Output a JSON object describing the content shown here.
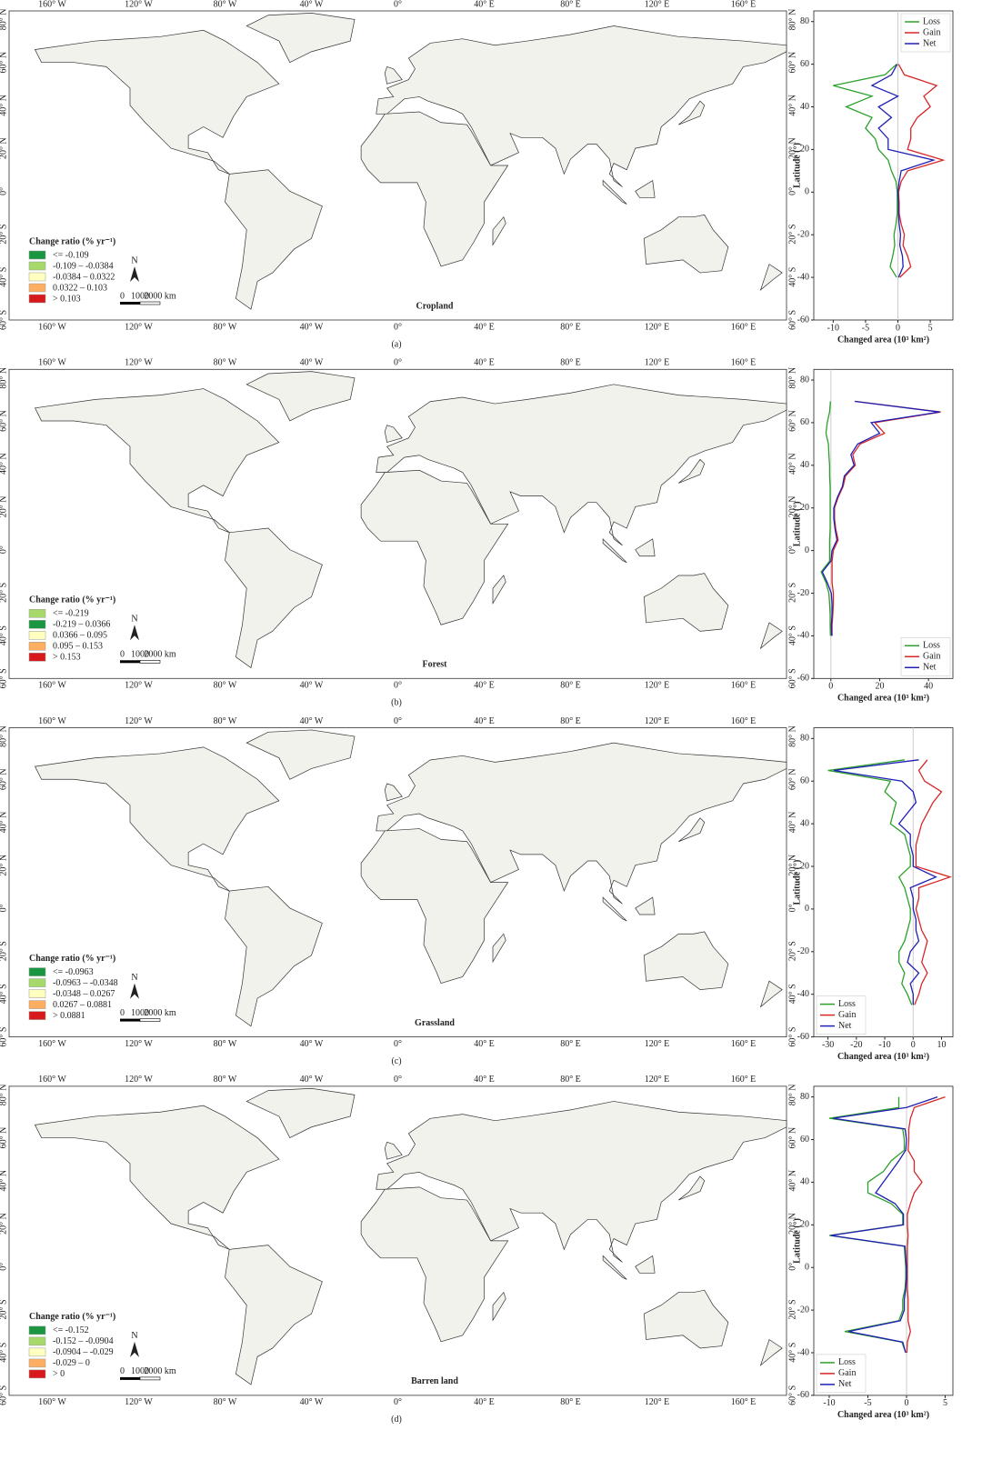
{
  "map": {
    "lon_labels": [
      "160° W",
      "120° W",
      "80° W",
      "40° W",
      "0°",
      "40° E",
      "80° E",
      "120° E",
      "160° E"
    ],
    "lat_labels": [
      "80° N",
      "60° N",
      "40° N",
      "20° N",
      "0°",
      "20° S",
      "40° S",
      "60° S"
    ],
    "legend_title": "Change ratio (% yr⁻¹)",
    "north": "N",
    "scale_labels": [
      "0",
      "1000",
      "2000 km"
    ]
  },
  "panels": [
    {
      "label": "(a)",
      "title": "Cropland",
      "legend_labels": [
        "<= -0.109",
        "-0.109 – -0.0384",
        "-0.0384 – 0.0322",
        "0.0322 – 0.103",
        "> 0.103"
      ],
      "legend_colors": [
        "#1a9641",
        "#a6d96a",
        "#ffffbf",
        "#fdae61",
        "#d7191c"
      ]
    },
    {
      "label": "(b)",
      "title": "Forest",
      "legend_labels": [
        "<= -0.219",
        "-0.219 – 0.0366",
        "0.0366 – 0.095",
        "0.095 – 0.153",
        "> 0.153"
      ],
      "legend_colors": [
        "#a6d96a",
        "#1a9641",
        "#ffffbf",
        "#fdae61",
        "#d7191c"
      ]
    },
    {
      "label": "(c)",
      "title": "Grassland",
      "legend_labels": [
        "<= -0.0963",
        "-0.0963 – -0.0348",
        "-0.0348 – 0.0267",
        "0.0267 – 0.0881",
        "> 0.0881"
      ],
      "legend_colors": [
        "#1a9641",
        "#a6d96a",
        "#ffffbf",
        "#fdae61",
        "#d7191c"
      ]
    },
    {
      "label": "(d)",
      "title": "Barren land",
      "legend_labels": [
        "<= -0.152",
        "-0.152 – -0.0904",
        "-0.0904 – -0.029",
        "-0.029 – 0",
        "> 0"
      ],
      "legend_colors": [
        "#1a9641",
        "#a6d96a",
        "#ffffbf",
        "#fdae61",
        "#d7191c"
      ]
    }
  ],
  "chart_data": [
    {
      "type": "line",
      "ylabel": "Latitude (°)",
      "xlabel": "Changed area (10³ km²)",
      "y": [
        -55,
        -50,
        -45,
        -40,
        -35,
        -30,
        -25,
        -20,
        -15,
        -10,
        -5,
        0,
        5,
        10,
        15,
        20,
        25,
        30,
        35,
        40,
        45,
        50,
        55,
        60,
        65,
        70,
        75,
        80
      ],
      "xlim": [
        -13,
        8.5
      ],
      "xticks": [
        -10,
        -5,
        0,
        5
      ],
      "ylim": [
        -60,
        85
      ],
      "yticks": [
        -60,
        -40,
        -20,
        0,
        20,
        40,
        60,
        80
      ],
      "legend": "upper right",
      "series": [
        {
          "name": "Loss",
          "color": "#2ca02c",
          "values": [
            null,
            null,
            null,
            -0.2,
            -1.2,
            -0.8,
            -0.5,
            -0.6,
            -0.3,
            -0.1,
            -0.1,
            -0.1,
            -0.3,
            -1,
            -1.5,
            -3,
            -3.5,
            -5,
            -4,
            -8,
            -4,
            -10,
            -2,
            -0.2,
            null,
            null,
            null,
            null
          ]
        },
        {
          "name": "Gain",
          "color": "#d62728",
          "values": [
            null,
            null,
            null,
            0.3,
            2,
            1.5,
            0.8,
            1,
            0.5,
            0.2,
            0.2,
            0.1,
            0.5,
            1.5,
            7,
            1.5,
            2,
            2,
            3,
            5,
            4,
            6,
            1,
            0.1,
            null,
            null,
            null,
            null
          ]
        },
        {
          "name": "Net",
          "color": "#1f1fb4",
          "values": [
            null,
            null,
            null,
            0.1,
            0.8,
            0.7,
            0.3,
            0.4,
            0.2,
            0.1,
            0.1,
            0,
            0.2,
            0.5,
            5.5,
            -1.5,
            -1.5,
            -3,
            -1,
            -3,
            0,
            -4,
            -1,
            -0.1,
            null,
            null,
            null,
            null
          ]
        }
      ]
    },
    {
      "type": "line",
      "ylabel": "Latitude (°)",
      "xlabel": "Changed area (10³ km²)",
      "y": [
        -55,
        -50,
        -45,
        -40,
        -35,
        -30,
        -25,
        -20,
        -15,
        -10,
        -5,
        0,
        5,
        10,
        15,
        20,
        25,
        30,
        35,
        40,
        45,
        50,
        55,
        60,
        65,
        70,
        75,
        80
      ],
      "xlim": [
        -7,
        50
      ],
      "xticks": [
        0,
        20,
        40
      ],
      "ylim": [
        -60,
        85
      ],
      "yticks": [
        -60,
        -40,
        -20,
        0,
        20,
        40,
        60,
        80
      ],
      "legend": "lower right",
      "series": [
        {
          "name": "Loss",
          "color": "#2ca02c",
          "values": [
            null,
            null,
            null,
            -0.2,
            -0.3,
            -0.3,
            -0.5,
            -0.8,
            -2,
            -4,
            -0.5,
            -0.5,
            -0.5,
            -0.3,
            -0.3,
            -0.3,
            -0.3,
            -0.3,
            -0.5,
            -0.5,
            -0.8,
            -1,
            -2,
            -1.5,
            -0.5,
            -0.2,
            null,
            null
          ]
        },
        {
          "name": "Gain",
          "color": "#d62728",
          "values": [
            null,
            null,
            null,
            0.5,
            0.5,
            0.8,
            1,
            1,
            0.5,
            0.5,
            0.5,
            1,
            3,
            2,
            1.5,
            1.5,
            3,
            5,
            6,
            10,
            9,
            12,
            22,
            18,
            45,
            10,
            null,
            null
          ]
        },
        {
          "name": "Net",
          "color": "#1f1fb4",
          "values": [
            null,
            null,
            null,
            0.3,
            0.2,
            0.5,
            0.5,
            0.2,
            -1.5,
            -3.5,
            0,
            0.5,
            2.5,
            1.7,
            1.2,
            1.2,
            2.7,
            4.7,
            5.5,
            9.5,
            8.2,
            11,
            20,
            16.5,
            44.5,
            9.8,
            null,
            null
          ]
        }
      ]
    },
    {
      "type": "line",
      "ylabel": "Latitude (°)",
      "xlabel": "Changed area (10³ km²)",
      "y": [
        -55,
        -50,
        -45,
        -40,
        -35,
        -30,
        -25,
        -20,
        -15,
        -10,
        -5,
        0,
        5,
        10,
        15,
        20,
        25,
        30,
        35,
        40,
        45,
        50,
        55,
        60,
        65,
        70,
        75,
        80
      ],
      "xlim": [
        -35,
        14
      ],
      "xticks": [
        -30,
        -20,
        -10,
        0,
        10
      ],
      "ylim": [
        -60,
        85
      ],
      "yticks": [
        -60,
        -40,
        -20,
        0,
        20,
        40,
        60,
        80
      ],
      "legend": "lower left",
      "series": [
        {
          "name": "Loss",
          "color": "#2ca02c",
          "values": [
            null,
            null,
            -0.5,
            -2,
            -4,
            -3,
            -5,
            -5,
            -3,
            -2,
            -1,
            -1,
            -2,
            -3,
            -5,
            -1,
            -1,
            -2,
            -3,
            -8,
            -7,
            -6,
            -10,
            -8,
            -30,
            -3,
            null,
            null
          ]
        },
        {
          "name": "Gain",
          "color": "#d62728",
          "values": [
            null,
            null,
            0.5,
            2,
            3,
            5,
            3,
            4,
            5,
            3,
            2,
            1,
            2,
            2,
            13,
            1,
            1,
            1,
            2,
            3,
            5,
            7,
            10,
            4,
            2,
            5,
            null,
            null
          ]
        },
        {
          "name": "Net",
          "color": "#1f1fb4",
          "values": [
            null,
            null,
            0,
            0,
            -1,
            2,
            -2,
            -1,
            2,
            1,
            1,
            0,
            0,
            -1,
            8,
            0,
            0,
            -1,
            -1,
            -5,
            -2,
            1,
            0,
            -4,
            -28,
            2,
            null,
            null
          ]
        }
      ]
    },
    {
      "type": "line",
      "ylabel": "Latitude (°)",
      "xlabel": "Changed area (10³ km²)",
      "y": [
        -55,
        -50,
        -45,
        -40,
        -35,
        -30,
        -25,
        -20,
        -15,
        -10,
        -5,
        0,
        5,
        10,
        15,
        20,
        25,
        30,
        35,
        40,
        45,
        50,
        55,
        60,
        65,
        70,
        75,
        80
      ],
      "xlim": [
        -12,
        6
      ],
      "xticks": [
        -10,
        -5,
        0,
        5
      ],
      "ylim": [
        -60,
        85
      ],
      "yticks": [
        -60,
        -40,
        -20,
        0,
        20,
        40,
        60,
        80
      ],
      "legend": "lower left",
      "series": [
        {
          "name": "Loss",
          "color": "#2ca02c",
          "values": [
            null,
            null,
            null,
            -0.1,
            -0.6,
            -8,
            -1,
            -0.5,
            -0.5,
            -0.2,
            -0.1,
            -0.1,
            -0.2,
            -0.3,
            -10,
            -0.5,
            -0.5,
            -2,
            -5,
            -5,
            -3,
            -2,
            -0.3,
            -0.3,
            -0.5,
            -10,
            -1,
            -1
          ]
        },
        {
          "name": "Gain",
          "color": "#d62728",
          "values": [
            null,
            null,
            null,
            0.05,
            0.1,
            0.5,
            0.2,
            0.2,
            0.2,
            0.1,
            0.1,
            0.1,
            0.1,
            0.1,
            0.2,
            0.1,
            0.1,
            0.5,
            1,
            2,
            1,
            1,
            0.2,
            0.3,
            0.3,
            0.5,
            1,
            5
          ]
        },
        {
          "name": "Net",
          "color": "#1f1fb4",
          "values": [
            null,
            null,
            null,
            -0.1,
            -0.5,
            -7.5,
            -0.8,
            -0.3,
            -0.3,
            -0.1,
            0,
            0,
            -0.1,
            -0.2,
            -9.8,
            -0.4,
            -0.4,
            -1.5,
            -4,
            -3,
            -2,
            -1,
            -0.1,
            0,
            -0.2,
            -9.5,
            0,
            4
          ]
        }
      ]
    }
  ]
}
